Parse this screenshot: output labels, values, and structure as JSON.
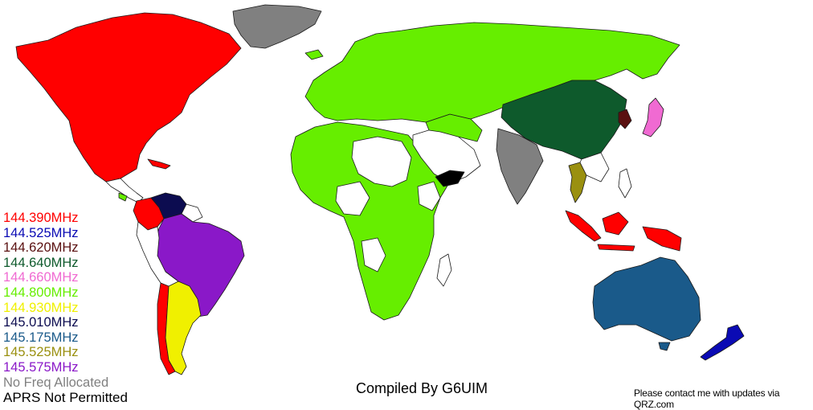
{
  "legend": {
    "items": [
      {
        "label": "144.390MHz",
        "color": "#ff0000"
      },
      {
        "label": "144.525MHz",
        "color": "#0a0ab4"
      },
      {
        "label": "144.620MHz",
        "color": "#5a1010"
      },
      {
        "label": "144.640MHz",
        "color": "#0e5a2c"
      },
      {
        "label": "144.660MHz",
        "color": "#f06ad2"
      },
      {
        "label": "144.800MHz",
        "color": "#66ee00"
      },
      {
        "label": "144.930MHz",
        "color": "#f0f000"
      },
      {
        "label": "145.010MHz",
        "color": "#0c0c50"
      },
      {
        "label": "145.175MHz",
        "color": "#1a5a8a"
      },
      {
        "label": "145.525MHz",
        "color": "#9a9010"
      },
      {
        "label": "145.575MHz",
        "color": "#8a18c8"
      },
      {
        "label": "No Freq Allocated",
        "color": "#808080"
      },
      {
        "label": "APRS Not Permitted",
        "color": "#000000"
      }
    ]
  },
  "credit": "Compiled By G6UIM",
  "contact": "Please contact me with updates via QRZ.com"
}
